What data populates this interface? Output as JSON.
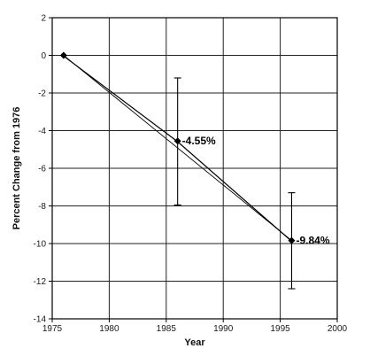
{
  "chart_data": {
    "type": "line",
    "title": "",
    "xlabel": "Year",
    "ylabel": "Percent Change from 1976",
    "xlim": [
      1975,
      2000
    ],
    "ylim": [
      -14,
      2
    ],
    "xticks": [
      1975,
      1980,
      1985,
      1990,
      1995,
      2000
    ],
    "yticks": [
      -14,
      -12,
      -10,
      -8,
      -6,
      -4,
      -2,
      0,
      2
    ],
    "grid": true,
    "legend": "none",
    "series": [
      {
        "name": "",
        "style": "markers-with-error-bars",
        "color": "#000000",
        "points": [
          {
            "x": 1976,
            "y": 0,
            "label": "",
            "err_low": 0,
            "err_high": 0
          },
          {
            "x": 1986,
            "y": -4.55,
            "label": "-4.55%",
            "err_low": -7.95,
            "err_high": -1.2
          },
          {
            "x": 1996,
            "y": -9.84,
            "label": "-9.84%",
            "err_low": -12.4,
            "err_high": -7.3
          }
        ]
      },
      {
        "name": "",
        "style": "trend-line",
        "color": "#000000",
        "points": [
          {
            "x": 1976,
            "y": 0
          },
          {
            "x": 1996,
            "y": -9.84
          }
        ]
      }
    ]
  }
}
